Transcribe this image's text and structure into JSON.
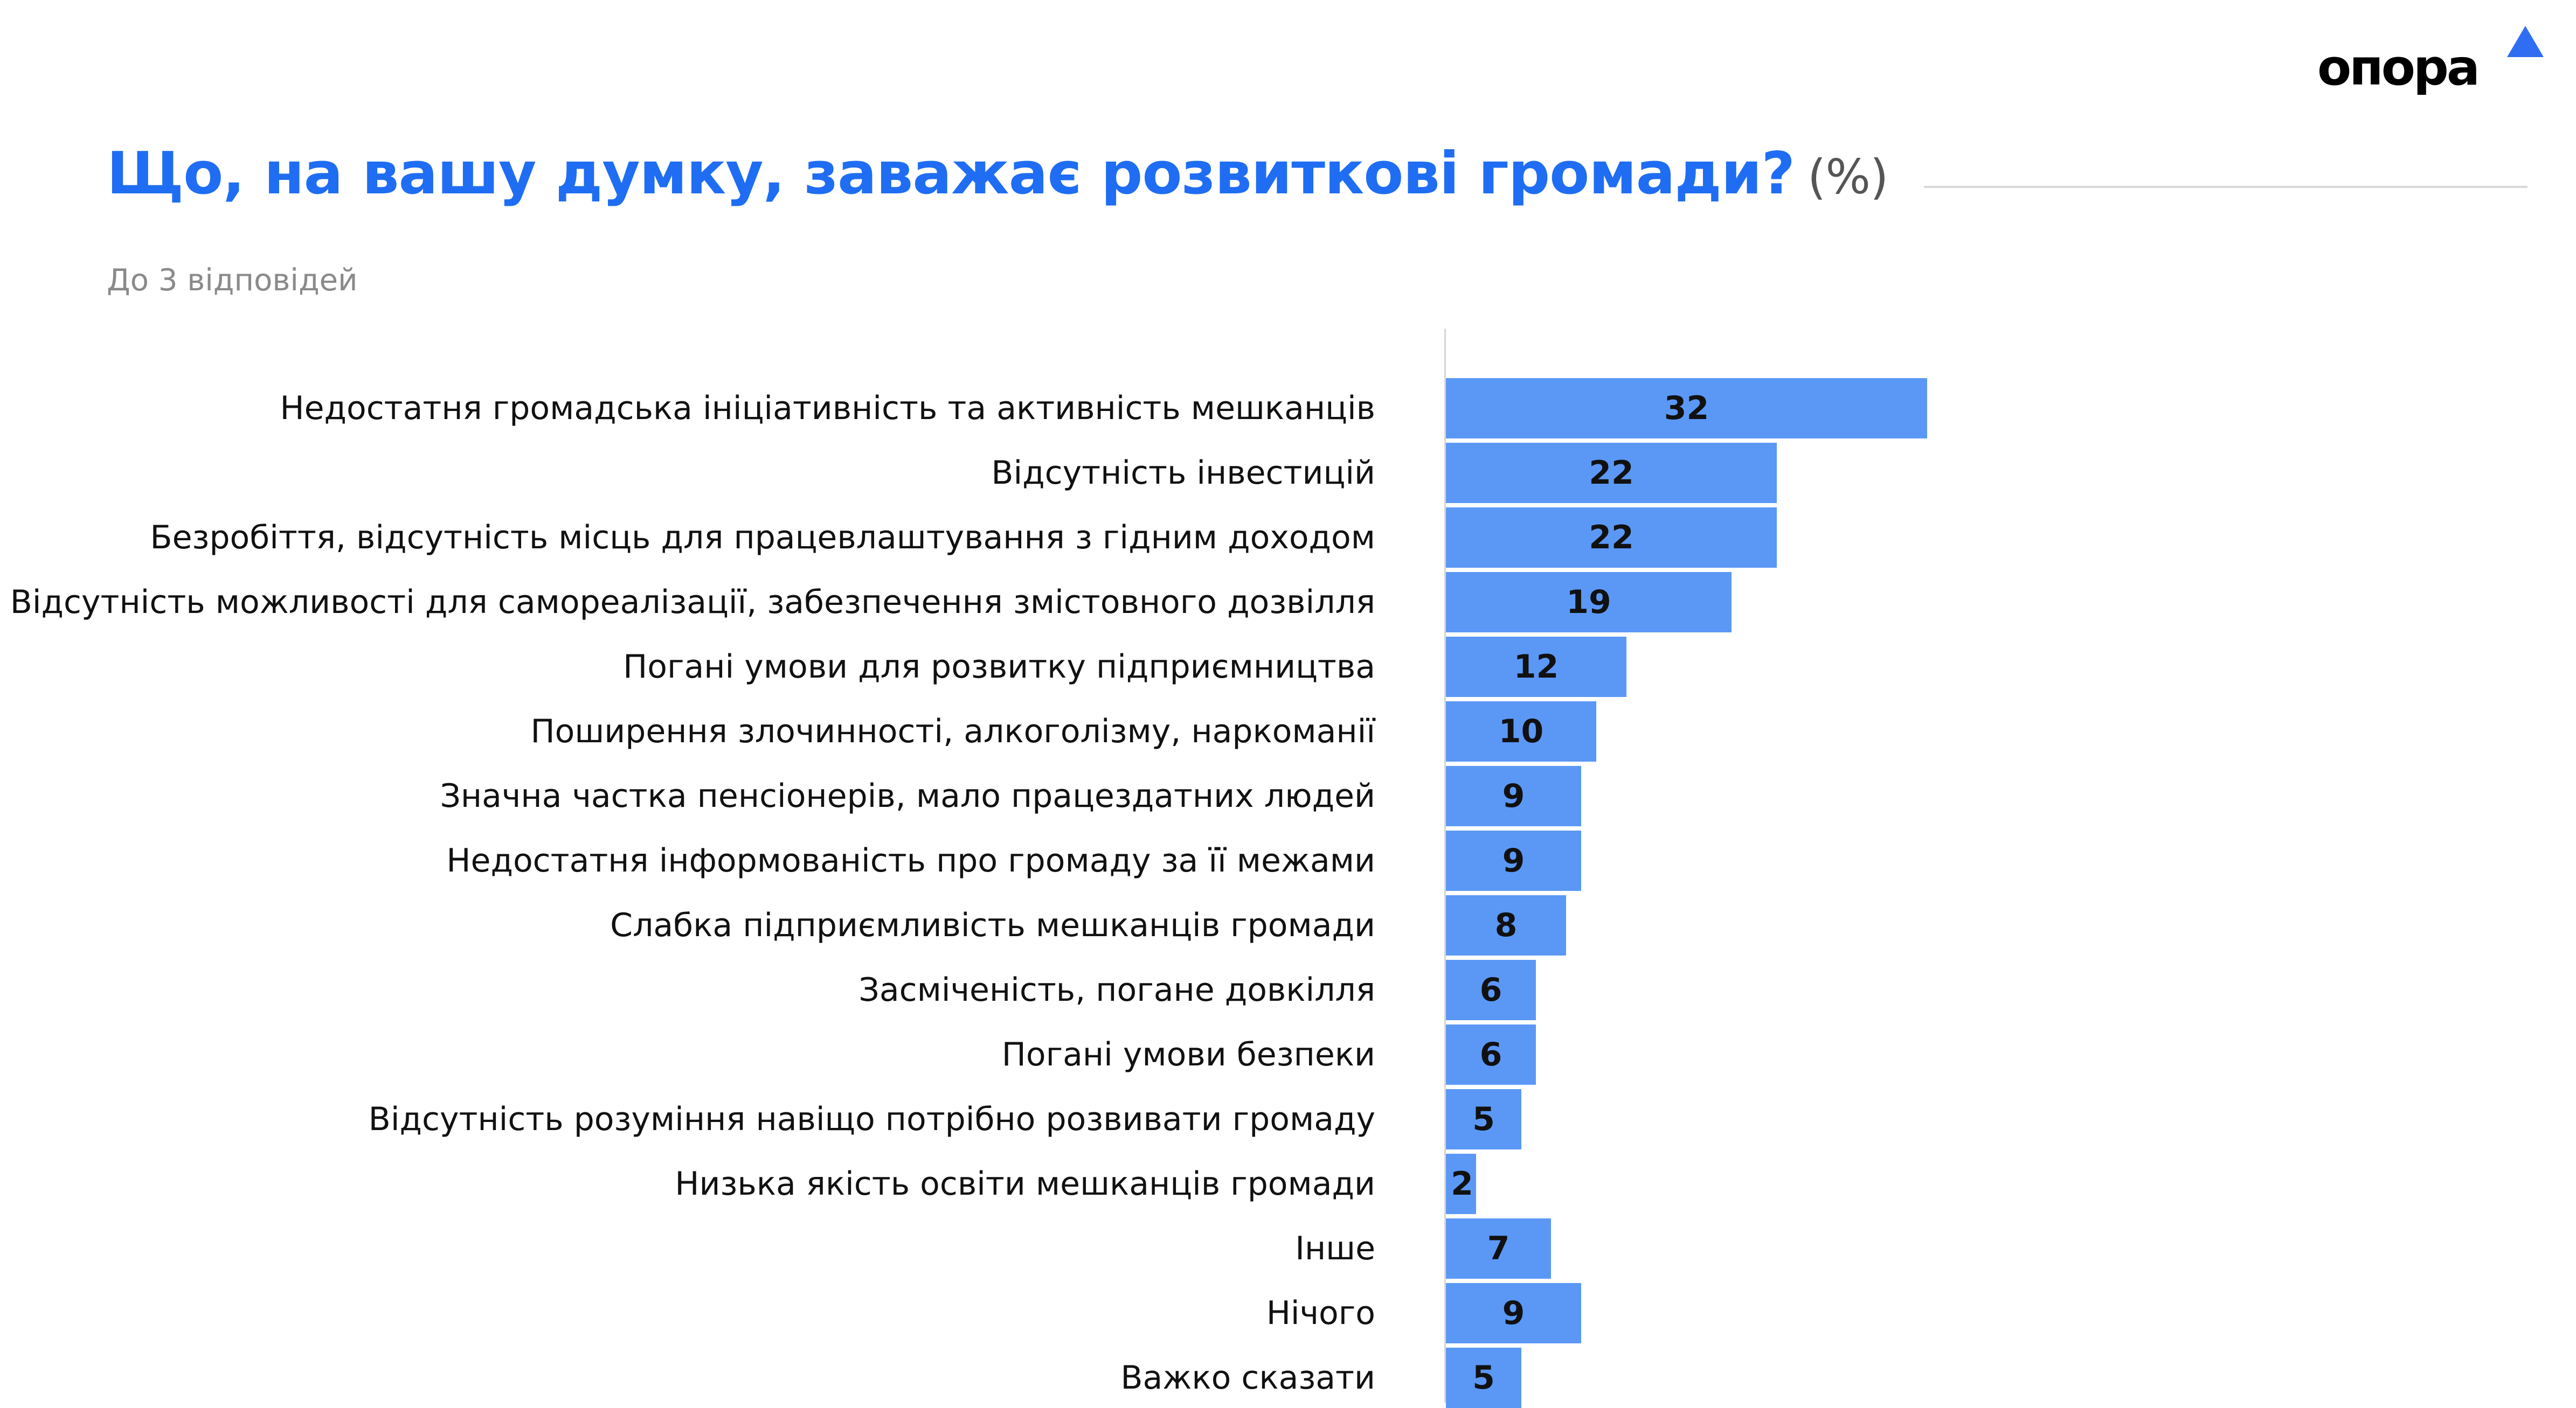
{
  "brand": {
    "logo_text": "опора",
    "accent_color": "#2f6ef2"
  },
  "header": {
    "title": "Що, на вашу думку, заважає розвиткові громади?",
    "unit": "(%)",
    "subtitle": "До 3 відповідей"
  },
  "colors": {
    "bar": "#5b98f6",
    "title": "#1f6df2"
  },
  "chart_data": {
    "type": "bar",
    "orientation": "horizontal",
    "title": "Що, на вашу думку, заважає розвиткові громади?",
    "xlabel": "",
    "ylabel": "",
    "xlim": [
      0,
      100
    ],
    "grid": false,
    "legend": "none",
    "categories": [
      "Недостатня громадська ініціативність та активність мешканців",
      "Відсутність інвестицій",
      "Безробіття, відсутність місць для працевлаштування з гідним доходом",
      "Відсутність можливості для самореалізації, забезпечення змістовного дозвілля",
      "Погані умови для розвитку підприємництва",
      "Поширення злочинності, алкоголізму, наркоманії",
      "Значна частка пенсіонерів, мало працездатних людей",
      "Недостатня інформованість про громаду за її межами",
      "Слабка підприємливість мешканців громади",
      "Засміченість, погане довкілля",
      "Погані умови безпеки",
      "Відсутність розуміння навіщо потрібно розвивати громаду",
      "Низька якість освіти мешканців громади",
      "Інше",
      "Нічого",
      "Важко сказати"
    ],
    "values": [
      32,
      22,
      22,
      19,
      12,
      10,
      9,
      9,
      8,
      6,
      6,
      5,
      2,
      7,
      9,
      5
    ]
  }
}
